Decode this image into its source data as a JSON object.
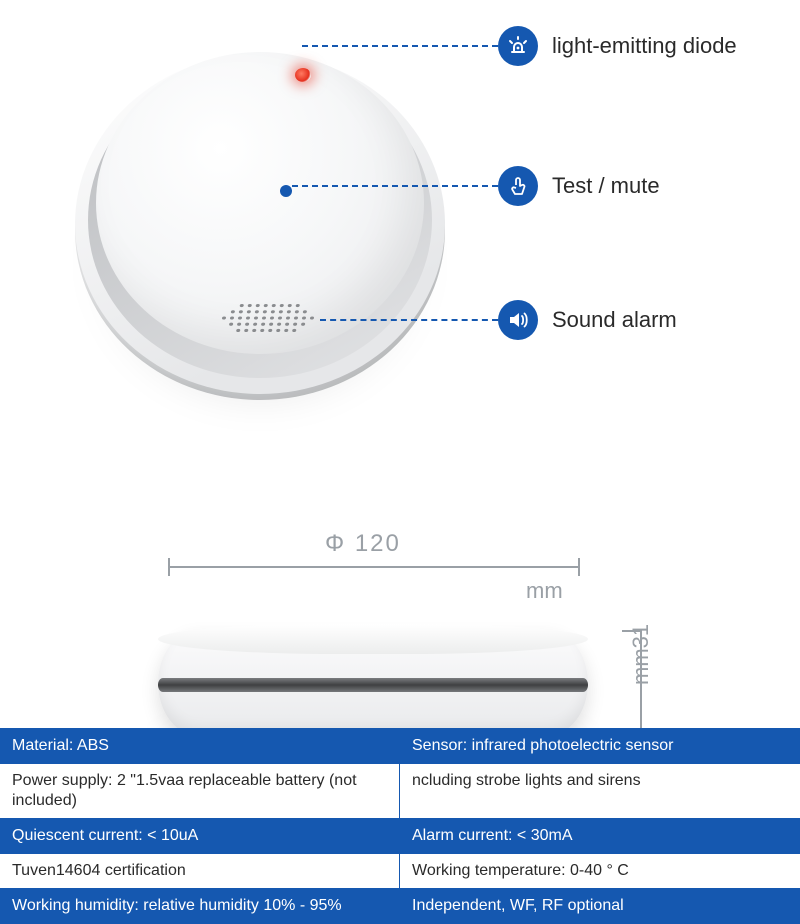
{
  "infographic": {
    "type": "product-diagram",
    "colors": {
      "accent": "#1558b0",
      "led": "#e5301e",
      "dim_text": "#9aa0a6",
      "body_text": "#2a2a2a",
      "detector_light": "#ffffff",
      "detector_shade": "#e7e8ea",
      "slit_dark": "#3f4042"
    },
    "callouts": [
      {
        "key": "led",
        "label": "light-emitting diode"
      },
      {
        "key": "test",
        "label": "Test / mute"
      },
      {
        "key": "sound",
        "label": "Sound alarm"
      }
    ],
    "dimensions": {
      "diameter_label": "Φ 120",
      "diameter_unit": "mm",
      "height_label": "mm31"
    },
    "spec_rows": [
      {
        "left": "Material: ABS",
        "right": "Sensor: infrared photoelectric sensor",
        "variant": "blue"
      },
      {
        "left": "Power supply: 2 \"1.5vaa replaceable battery (not included)",
        "right": "ncluding strobe lights and sirens",
        "variant": "white"
      },
      {
        "left": "Quiescent current: < 10uA",
        "right": "Alarm current: < 30mA",
        "variant": "blue"
      },
      {
        "left": "Tuven14604 certification",
        "right": "Working temperature: 0-40 ° C",
        "variant": "white"
      },
      {
        "left": "Working humidity: relative humidity 10% - 95%",
        "right": "Independent, WF, RF optional",
        "variant": "blue"
      }
    ]
  }
}
